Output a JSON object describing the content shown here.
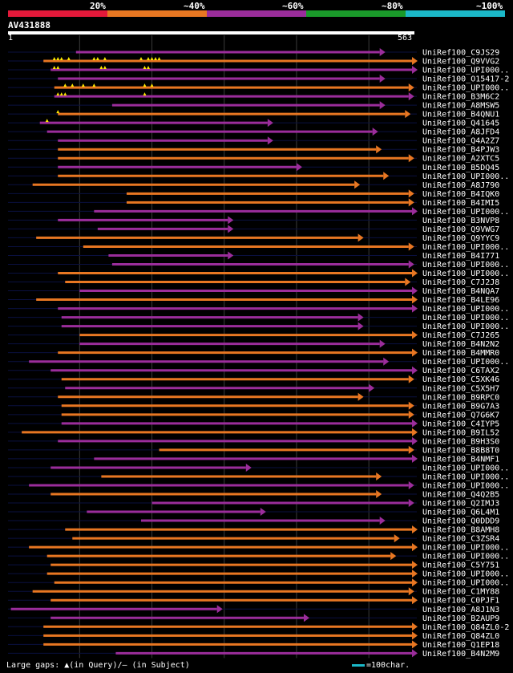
{
  "legend": {
    "labels": [
      "20%",
      "~40%",
      "~60%",
      "~80%",
      "~100%"
    ],
    "colors": [
      "#e3193a",
      "#e87722",
      "#9b2d9b",
      "#1a9a2a",
      "#1bb8c8"
    ]
  },
  "query": {
    "name": "AV431888",
    "start": "1",
    "end": "563"
  },
  "footer": {
    "gaps_text": "Large gaps: ▲(in Query)/– (in Subject)",
    "scale_text": "=100char."
  },
  "chart_data": {
    "type": "alignment",
    "title": "AV431888",
    "xlim": [
      1,
      563
    ],
    "gridlines": [
      100,
      200,
      300,
      400,
      500
    ],
    "hits": [
      {
        "name": "UniRef100_C9JS29",
        "start": 95,
        "end": 515,
        "color": "purple",
        "gaps": []
      },
      {
        "name": "UniRef100_Q9VVG2",
        "start": 50,
        "end": 560,
        "color": "orange",
        "gaps": [
          65,
          70,
          75,
          85,
          120,
          125,
          135,
          185,
          195,
          200,
          205,
          210
        ]
      },
      {
        "name": "UniRef100_UPI000..",
        "start": 60,
        "end": 560,
        "color": "purple",
        "gaps": [
          65,
          70,
          130,
          135,
          190,
          195
        ]
      },
      {
        "name": "UniRef100_O15417-2",
        "start": 70,
        "end": 515,
        "color": "purple",
        "gaps": []
      },
      {
        "name": "UniRef100_UPI000..",
        "start": 65,
        "end": 555,
        "color": "orange",
        "gaps": [
          80,
          90,
          105,
          120,
          190,
          200
        ]
      },
      {
        "name": "UniRef100_B3M6C2",
        "start": 65,
        "end": 555,
        "color": "purple",
        "gaps": [
          70,
          75,
          80,
          190
        ]
      },
      {
        "name": "UniRef100_A8MSW5",
        "start": 145,
        "end": 515,
        "color": "purple",
        "gaps": []
      },
      {
        "name": "UniRef100_B4QNU1",
        "start": 70,
        "end": 550,
        "color": "orange",
        "gaps": [
          70
        ]
      },
      {
        "name": "UniRef100_Q41645",
        "start": 45,
        "end": 360,
        "color": "purple",
        "gaps": [
          55
        ]
      },
      {
        "name": "UniRef100_A8JFD4",
        "start": 55,
        "end": 505,
        "color": "purple",
        "gaps": []
      },
      {
        "name": "UniRef100_Q4A2Z7",
        "start": 70,
        "end": 360,
        "color": "purple",
        "gaps": []
      },
      {
        "name": "UniRef100_B4PJW3",
        "start": 70,
        "end": 510,
        "color": "orange",
        "gaps": []
      },
      {
        "name": "UniRef100_A2XTC5",
        "start": 70,
        "end": 555,
        "color": "orange",
        "gaps": []
      },
      {
        "name": "UniRef100_B5DQ45",
        "start": 70,
        "end": 400,
        "color": "purple",
        "gaps": []
      },
      {
        "name": "UniRef100_UPI000..",
        "start": 70,
        "end": 520,
        "color": "orange",
        "gaps": []
      },
      {
        "name": "UniRef100_A8J790",
        "start": 35,
        "end": 480,
        "color": "orange",
        "gaps": []
      },
      {
        "name": "UniRef100_B4IQK0",
        "start": 165,
        "end": 555,
        "color": "orange",
        "gaps": []
      },
      {
        "name": "UniRef100_B4IMI5",
        "start": 165,
        "end": 555,
        "color": "orange",
        "gaps": []
      },
      {
        "name": "UniRef100_UPI000..",
        "start": 120,
        "end": 570,
        "color": "purple",
        "gaps": []
      },
      {
        "name": "UniRef100_B3NVP8",
        "start": 70,
        "end": 305,
        "color": "purple",
        "gaps": []
      },
      {
        "name": "UniRef100_Q9VWG7",
        "start": 125,
        "end": 305,
        "color": "purple",
        "gaps": []
      },
      {
        "name": "UniRef100_Q9YYC9",
        "start": 40,
        "end": 485,
        "color": "orange",
        "gaps": []
      },
      {
        "name": "UniRef100_UPI000..",
        "start": 105,
        "end": 555,
        "color": "orange",
        "gaps": []
      },
      {
        "name": "UniRef100_B4I771",
        "start": 140,
        "end": 305,
        "color": "purple",
        "gaps": []
      },
      {
        "name": "UniRef100_UPI000..",
        "start": 145,
        "end": 555,
        "color": "purple",
        "gaps": []
      },
      {
        "name": "UniRef100_UPI000..",
        "start": 70,
        "end": 570,
        "color": "orange",
        "gaps": []
      },
      {
        "name": "UniRef100_C7J2J8",
        "start": 80,
        "end": 550,
        "color": "orange",
        "gaps": []
      },
      {
        "name": "UniRef100_B4NQA7",
        "start": 100,
        "end": 570,
        "color": "purple",
        "gaps": []
      },
      {
        "name": "UniRef100_B4LE96",
        "start": 40,
        "end": 565,
        "color": "orange",
        "gaps": []
      },
      {
        "name": "UniRef100_UPI000..",
        "start": 70,
        "end": 560,
        "color": "purple",
        "gaps": []
      },
      {
        "name": "UniRef100_UPI000..",
        "start": 75,
        "end": 485,
        "color": "purple",
        "gaps": []
      },
      {
        "name": "UniRef100_UPI000..",
        "start": 75,
        "end": 485,
        "color": "purple",
        "gaps": []
      },
      {
        "name": "UniRef100_C7J265",
        "start": 100,
        "end": 560,
        "color": "orange",
        "gaps": []
      },
      {
        "name": "UniRef100_B4N2N2",
        "start": 100,
        "end": 515,
        "color": "purple",
        "gaps": []
      },
      {
        "name": "UniRef100_B4MMR0",
        "start": 70,
        "end": 560,
        "color": "orange",
        "gaps": []
      },
      {
        "name": "UniRef100_UPI000..",
        "start": 30,
        "end": 520,
        "color": "purple",
        "gaps": []
      },
      {
        "name": "UniRef100_C6TAX2",
        "start": 60,
        "end": 570,
        "color": "purple",
        "gaps": []
      },
      {
        "name": "UniRef100_C5XK46",
        "start": 75,
        "end": 555,
        "color": "orange",
        "gaps": []
      },
      {
        "name": "UniRef100_C5X5H7",
        "start": 80,
        "end": 500,
        "color": "purple",
        "gaps": []
      },
      {
        "name": "UniRef100_B9RPC0",
        "start": 70,
        "end": 485,
        "color": "orange",
        "gaps": []
      },
      {
        "name": "UniRef100_B9G7A3",
        "start": 75,
        "end": 555,
        "color": "orange",
        "gaps": []
      },
      {
        "name": "UniRef100_Q7G6K7",
        "start": 75,
        "end": 555,
        "color": "orange",
        "gaps": []
      },
      {
        "name": "UniRef100_C4IYP5",
        "start": 75,
        "end": 565,
        "color": "purple",
        "gaps": []
      },
      {
        "name": "UniRef100_B9IL52",
        "start": 20,
        "end": 560,
        "color": "orange",
        "gaps": []
      },
      {
        "name": "UniRef100_B9H3S0",
        "start": 70,
        "end": 560,
        "color": "purple",
        "gaps": []
      },
      {
        "name": "UniRef100_B8B8T0",
        "start": 210,
        "end": 555,
        "color": "orange",
        "gaps": []
      },
      {
        "name": "UniRef100_B4NMF1",
        "start": 120,
        "end": 570,
        "color": "purple",
        "gaps": []
      },
      {
        "name": "UniRef100_UPI000..",
        "start": 60,
        "end": 330,
        "color": "purple",
        "gaps": []
      },
      {
        "name": "UniRef100_UPI000..",
        "start": 130,
        "end": 510,
        "color": "orange",
        "gaps": []
      },
      {
        "name": "UniRef100_UPI000..",
        "start": 30,
        "end": 555,
        "color": "purple",
        "gaps": []
      },
      {
        "name": "UniRef100_Q4Q2B5",
        "start": 60,
        "end": 510,
        "color": "orange",
        "gaps": []
      },
      {
        "name": "UniRef100_Q2IMJ3",
        "start": 200,
        "end": 555,
        "color": "purple",
        "gaps": []
      },
      {
        "name": "UniRef100_Q6L4M1",
        "start": 110,
        "end": 350,
        "color": "purple",
        "gaps": []
      },
      {
        "name": "UniRef100_Q0DDD9",
        "start": 185,
        "end": 515,
        "color": "purple",
        "gaps": []
      },
      {
        "name": "UniRef100_B8AMH8",
        "start": 80,
        "end": 565,
        "color": "orange",
        "gaps": []
      },
      {
        "name": "UniRef100_C3ZSR4",
        "start": 90,
        "end": 535,
        "color": "orange",
        "gaps": []
      },
      {
        "name": "UniRef100_UPI000..",
        "start": 30,
        "end": 570,
        "color": "orange",
        "gaps": []
      },
      {
        "name": "UniRef100_UPI000..",
        "start": 55,
        "end": 530,
        "color": "orange",
        "gaps": []
      },
      {
        "name": "UniRef100_C5Y751",
        "start": 60,
        "end": 560,
        "color": "orange",
        "gaps": []
      },
      {
        "name": "UniRef100_UPI000..",
        "start": 55,
        "end": 560,
        "color": "orange",
        "gaps": []
      },
      {
        "name": "UniRef100_UPI000..",
        "start": 65,
        "end": 560,
        "color": "orange",
        "gaps": []
      },
      {
        "name": "UniRef100_C1MY88",
        "start": 35,
        "end": 555,
        "color": "orange",
        "gaps": []
      },
      {
        "name": "UniRef100_C0PJF1",
        "start": 60,
        "end": 560,
        "color": "orange",
        "gaps": []
      },
      {
        "name": "UniRef100_A8J1N3",
        "start": 5,
        "end": 290,
        "color": "purple",
        "gaps": []
      },
      {
        "name": "UniRef100_B2AUP9",
        "start": 60,
        "end": 410,
        "color": "purple",
        "gaps": []
      },
      {
        "name": "UniRef100_Q84ZL0-2",
        "start": 50,
        "end": 560,
        "color": "orange",
        "gaps": []
      },
      {
        "name": "UniRef100_Q84ZL0",
        "start": 50,
        "end": 560,
        "color": "orange",
        "gaps": []
      },
      {
        "name": "UniRef100_Q1EP18",
        "start": 50,
        "end": 560,
        "color": "orange",
        "gaps": []
      },
      {
        "name": "UniRef100_B4N2M9",
        "start": 150,
        "end": 570,
        "color": "purple",
        "gaps": []
      }
    ]
  }
}
